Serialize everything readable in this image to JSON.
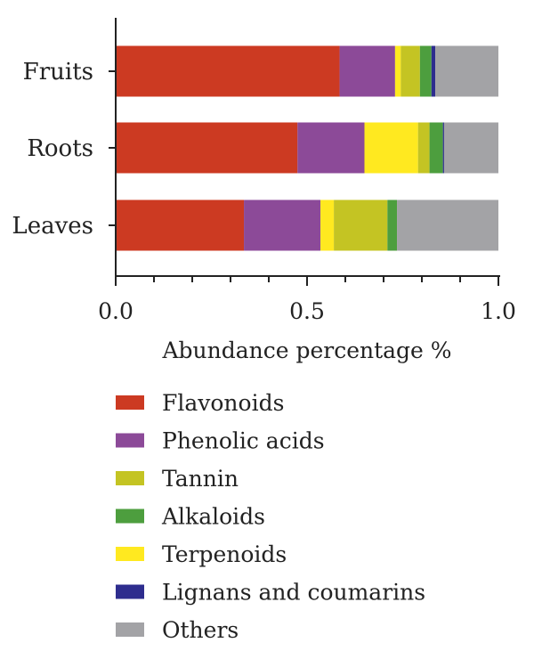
{
  "chart_data": {
    "type": "bar",
    "orientation": "horizontal",
    "stacked": true,
    "title": "",
    "xlabel": "Abundance percentage %",
    "ylabel": "",
    "xlim": [
      0,
      1
    ],
    "x_ticks": [
      0,
      0.5,
      1
    ],
    "x_tick_labels": [
      "0.0",
      "0.5",
      "1.0"
    ],
    "grid": false,
    "legend_position": "bottom",
    "categories": [
      "Fruits",
      "Roots",
      "Leaves"
    ],
    "series": [
      {
        "name": "Flavonoids",
        "color": "#cc3a22",
        "values": [
          0.585,
          0.475,
          0.335
        ]
      },
      {
        "name": "Phenolic acids",
        "color": "#8c4a98",
        "values": [
          0.145,
          0.175,
          0.2
        ]
      },
      {
        "name": "Terpenoids",
        "color": "#ffe920",
        "values": [
          0.015,
          0.14,
          0.035
        ]
      },
      {
        "name": "Tannin",
        "color": "#c4c423",
        "values": [
          0.05,
          0.03,
          0.14
        ]
      },
      {
        "name": "Alkaloids",
        "color": "#4d9e3e",
        "values": [
          0.03,
          0.035,
          0.025
        ]
      },
      {
        "name": "Lignans and coumarins",
        "color": "#2e2d8e",
        "values": [
          0.01,
          0.003,
          0
        ]
      },
      {
        "name": "Others",
        "color": "#a3a3a6",
        "values": [
          0.165,
          0.142,
          0.265
        ]
      }
    ],
    "legend_order": [
      "Flavonoids",
      "Phenolic acids",
      "Tannin",
      "Alkaloids",
      "Terpenoids",
      "Lignans and coumarins",
      "Others"
    ]
  }
}
